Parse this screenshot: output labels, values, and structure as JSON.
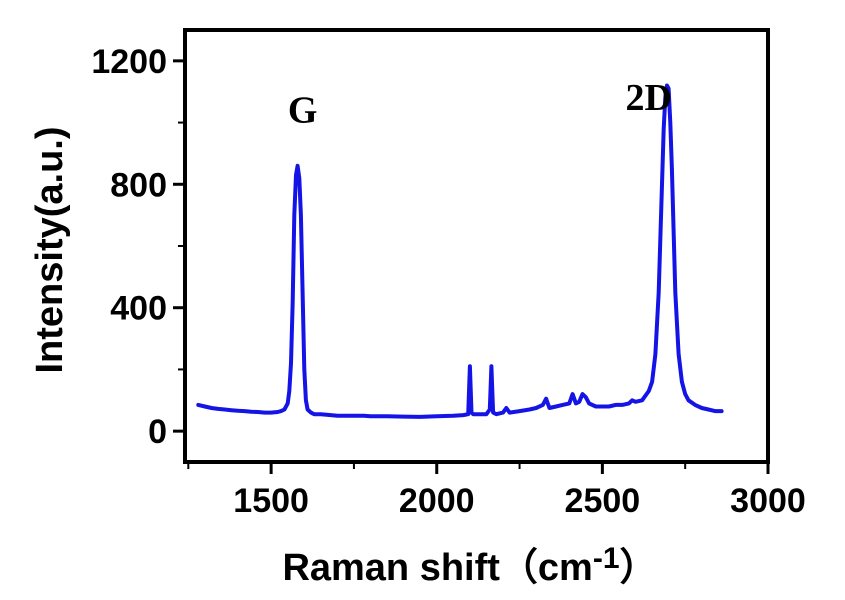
{
  "chart_data": {
    "type": "line",
    "xlabel": "Raman shift",
    "xlabel_unit_open": "（cm",
    "xlabel_unit_sup": "-1",
    "xlabel_unit_close": "）",
    "ylabel": "Intensity(a.u.)",
    "xlim": [
      1240,
      3000
    ],
    "ylim": [
      -100,
      1300
    ],
    "x_ticks": [
      1500,
      2000,
      2500,
      3000
    ],
    "y_ticks": [
      0,
      400,
      800,
      1200
    ],
    "grid": false,
    "line_color": "#1414e6",
    "annotations": [
      {
        "text": "G",
        "x": 1580,
        "y": 1000
      },
      {
        "text": "2D",
        "x": 2640,
        "y": 1040
      }
    ],
    "series": [
      {
        "x": [
          1280,
          1300,
          1320,
          1340,
          1360,
          1380,
          1400,
          1420,
          1440,
          1460,
          1480,
          1500,
          1520,
          1530,
          1540,
          1550,
          1555,
          1560,
          1565,
          1570,
          1575,
          1580,
          1585,
          1590,
          1595,
          1600,
          1605,
          1610,
          1620,
          1630,
          1650,
          1680,
          1700,
          1720,
          1750,
          1780,
          1800,
          1850,
          1900,
          1950,
          2000,
          2050,
          2080,
          2095,
          2100,
          2105,
          2110,
          2130,
          2150,
          2160,
          2165,
          2170,
          2180,
          2200,
          2210,
          2220,
          2250,
          2280,
          2300,
          2320,
          2330,
          2340,
          2360,
          2380,
          2400,
          2410,
          2420,
          2430,
          2440,
          2450,
          2460,
          2480,
          2500,
          2520,
          2540,
          2560,
          2580,
          2590,
          2600,
          2620,
          2640,
          2650,
          2660,
          2670,
          2680,
          2685,
          2690,
          2695,
          2700,
          2705,
          2710,
          2715,
          2720,
          2730,
          2740,
          2750,
          2760,
          2780,
          2800,
          2820,
          2840,
          2860
        ],
        "y": [
          85,
          80,
          75,
          72,
          70,
          68,
          66,
          65,
          63,
          62,
          60,
          60,
          62,
          65,
          70,
          90,
          130,
          220,
          420,
          700,
          830,
          860,
          820,
          700,
          450,
          200,
          100,
          70,
          60,
          55,
          55,
          52,
          50,
          50,
          50,
          50,
          48,
          48,
          47,
          46,
          48,
          50,
          52,
          55,
          210,
          60,
          55,
          55,
          55,
          70,
          210,
          60,
          55,
          60,
          75,
          60,
          65,
          70,
          75,
          85,
          105,
          75,
          80,
          85,
          90,
          120,
          90,
          95,
          120,
          110,
          90,
          80,
          80,
          80,
          85,
          85,
          90,
          100,
          95,
          100,
          130,
          160,
          250,
          450,
          800,
          980,
          1080,
          1120,
          1110,
          1000,
          850,
          650,
          450,
          250,
          160,
          120,
          100,
          85,
          75,
          70,
          65,
          65
        ]
      }
    ]
  }
}
